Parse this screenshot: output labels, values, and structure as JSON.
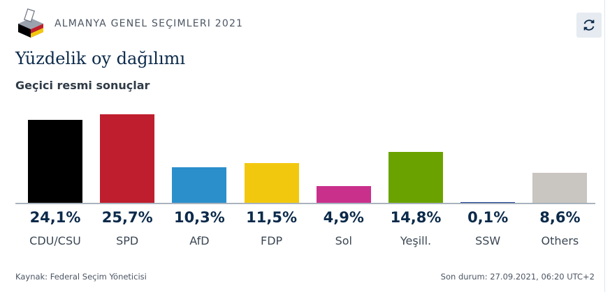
{
  "header": {
    "app_title": "ALMANYA GENEL SEÇIMLERI 2021",
    "logo_icon": "ballot-box-icon",
    "refresh_icon": "refresh-icon"
  },
  "title": "Yüzdelik oy dağılımı",
  "subtitle": "Geçici resmi sonuçlar",
  "chart_data": {
    "type": "bar",
    "categories": [
      "CDU/CSU",
      "SPD",
      "AfD",
      "FDP",
      "Sol",
      "Yeşill.",
      "SSW",
      "Others"
    ],
    "values": [
      24.1,
      25.7,
      10.3,
      11.5,
      4.9,
      14.8,
      0.1,
      8.6
    ],
    "value_labels": [
      "24,1%",
      "25,7%",
      "10,3%",
      "11,5%",
      "4,9%",
      "14,8%",
      "0,1%",
      "8,6%"
    ],
    "colors": [
      "#000000",
      "#be1e2d",
      "#2b8fcc",
      "#f2c80f",
      "#c9308c",
      "#6aa300",
      "#1c3f93",
      "#c9c5c0"
    ],
    "ylim": [
      0,
      26.5
    ]
  },
  "footer": {
    "source": "Kaynak: Federal Seçim Yöneticisi",
    "updated": "Son durum: 27.09.2021, 06:20 UTC+2"
  }
}
